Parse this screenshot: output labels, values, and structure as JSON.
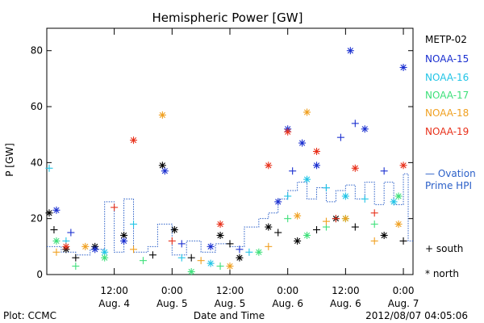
{
  "chart_data": {
    "type": "scatter",
    "title": "Hemispheric Power [GW]",
    "xlabel": "Date and Time",
    "ylabel": "P [GW]",
    "xlim": [
      "2012-08-03T22:00",
      "2012-08-07T02:00"
    ],
    "ylim": [
      0,
      88
    ],
    "x_ticks": [
      {
        "t": "2012-08-04T12:00",
        "time": "12:00",
        "date": "Aug. 4"
      },
      {
        "t": "2012-08-05T00:00",
        "time": "0:00",
        "date": "Aug. 5"
      },
      {
        "t": "2012-08-05T12:00",
        "time": "12:00",
        "date": "Aug. 5"
      },
      {
        "t": "2012-08-06T00:00",
        "time": "0:00",
        "date": "Aug. 6"
      },
      {
        "t": "2012-08-06T12:00",
        "time": "12:00",
        "date": "Aug. 6"
      },
      {
        "t": "2012-08-07T00:00",
        "time": "0:00",
        "date": "Aug. 7"
      }
    ],
    "y_ticks": [
      0,
      20,
      40,
      60,
      80
    ],
    "footer_left": "Plot: CCMC",
    "footer_right": "2012/08/07 04:05:06",
    "legend": {
      "position": "right",
      "series": [
        {
          "name": "METP-02",
          "color": "#000000"
        },
        {
          "name": "NOAA-15",
          "color": "#1a2fd0"
        },
        {
          "name": "NOAA-16",
          "color": "#21c4e6"
        },
        {
          "name": "NOAA-17",
          "color": "#3ee07a"
        },
        {
          "name": "NOAA-18",
          "color": "#f0a020"
        },
        {
          "name": "NOAA-19",
          "color": "#e8301a"
        }
      ],
      "ovation_line1": "— Ovation",
      "ovation_line2": "Prime HPI",
      "ovation_color": "#2a5fc8",
      "south_label": "+ south",
      "north_label": "* north"
    },
    "series": [
      {
        "name": "METP-02",
        "points": [
          {
            "x": "2012-08-03T22:30",
            "y": 22,
            "m": "north"
          },
          {
            "x": "2012-08-03T23:30",
            "y": 16,
            "m": "south"
          },
          {
            "x": "2012-08-04T02:00",
            "y": 9,
            "m": "north"
          },
          {
            "x": "2012-08-04T04:00",
            "y": 6,
            "m": "south"
          },
          {
            "x": "2012-08-04T08:00",
            "y": 10,
            "m": "north"
          },
          {
            "x": "2012-08-04T14:00",
            "y": 14,
            "m": "north"
          },
          {
            "x": "2012-08-04T20:00",
            "y": 7,
            "m": "south"
          },
          {
            "x": "2012-08-04T22:00",
            "y": 39,
            "m": "north"
          },
          {
            "x": "2012-08-05T00:30",
            "y": 16,
            "m": "north"
          },
          {
            "x": "2012-08-05T04:00",
            "y": 6,
            "m": "south"
          },
          {
            "x": "2012-08-05T10:00",
            "y": 14,
            "m": "north"
          },
          {
            "x": "2012-08-05T12:00",
            "y": 11,
            "m": "south"
          },
          {
            "x": "2012-08-05T14:00",
            "y": 6,
            "m": "north"
          },
          {
            "x": "2012-08-05T20:00",
            "y": 17,
            "m": "north"
          },
          {
            "x": "2012-08-05T22:00",
            "y": 15,
            "m": "south"
          },
          {
            "x": "2012-08-06T02:00",
            "y": 12,
            "m": "north"
          },
          {
            "x": "2012-08-06T06:00",
            "y": 16,
            "m": "south"
          },
          {
            "x": "2012-08-06T10:00",
            "y": 20,
            "m": "north"
          },
          {
            "x": "2012-08-06T14:00",
            "y": 17,
            "m": "south"
          },
          {
            "x": "2012-08-06T20:00",
            "y": 14,
            "m": "north"
          },
          {
            "x": "2012-08-07T00:00",
            "y": 12,
            "m": "south"
          }
        ]
      },
      {
        "name": "NOAA-15",
        "points": [
          {
            "x": "2012-08-04T00:00",
            "y": 23,
            "m": "north"
          },
          {
            "x": "2012-08-04T03:00",
            "y": 15,
            "m": "south"
          },
          {
            "x": "2012-08-04T08:00",
            "y": 9,
            "m": "north"
          },
          {
            "x": "2012-08-04T14:00",
            "y": 12,
            "m": "north"
          },
          {
            "x": "2012-08-04T22:30",
            "y": 37,
            "m": "north"
          },
          {
            "x": "2012-08-05T02:00",
            "y": 11,
            "m": "south"
          },
          {
            "x": "2012-08-05T08:00",
            "y": 10,
            "m": "north"
          },
          {
            "x": "2012-08-05T14:00",
            "y": 9,
            "m": "south"
          },
          {
            "x": "2012-08-05T22:00",
            "y": 26,
            "m": "north"
          },
          {
            "x": "2012-08-06T00:00",
            "y": 52,
            "m": "north"
          },
          {
            "x": "2012-08-06T01:00",
            "y": 37,
            "m": "south"
          },
          {
            "x": "2012-08-06T03:00",
            "y": 47,
            "m": "north"
          },
          {
            "x": "2012-08-06T06:00",
            "y": 39,
            "m": "north"
          },
          {
            "x": "2012-08-06T08:00",
            "y": 31,
            "m": "south"
          },
          {
            "x": "2012-08-06T11:00",
            "y": 49,
            "m": "south"
          },
          {
            "x": "2012-08-06T13:00",
            "y": 80,
            "m": "north"
          },
          {
            "x": "2012-08-06T14:00",
            "y": 54,
            "m": "south"
          },
          {
            "x": "2012-08-06T16:00",
            "y": 52,
            "m": "north"
          },
          {
            "x": "2012-08-06T20:00",
            "y": 37,
            "m": "south"
          },
          {
            "x": "2012-08-07T00:00",
            "y": 74,
            "m": "north"
          }
        ]
      },
      {
        "name": "NOAA-16",
        "points": [
          {
            "x": "2012-08-03T22:30",
            "y": 38,
            "m": "south"
          },
          {
            "x": "2012-08-04T02:00",
            "y": 12,
            "m": "south"
          },
          {
            "x": "2012-08-04T10:00",
            "y": 8,
            "m": "north"
          },
          {
            "x": "2012-08-04T16:00",
            "y": 18,
            "m": "south"
          },
          {
            "x": "2012-08-05T02:00",
            "y": 6,
            "m": "south"
          },
          {
            "x": "2012-08-05T08:00",
            "y": 4,
            "m": "north"
          },
          {
            "x": "2012-08-05T16:00",
            "y": 8,
            "m": "south"
          },
          {
            "x": "2012-08-06T00:00",
            "y": 28,
            "m": "south"
          },
          {
            "x": "2012-08-06T04:00",
            "y": 34,
            "m": "north"
          },
          {
            "x": "2012-08-06T08:00",
            "y": 31,
            "m": "south"
          },
          {
            "x": "2012-08-06T12:00",
            "y": 28,
            "m": "north"
          },
          {
            "x": "2012-08-06T16:00",
            "y": 27,
            "m": "south"
          },
          {
            "x": "2012-08-06T22:00",
            "y": 26,
            "m": "north"
          }
        ]
      },
      {
        "name": "NOAA-17",
        "points": [
          {
            "x": "2012-08-04T00:00",
            "y": 12,
            "m": "north"
          },
          {
            "x": "2012-08-04T04:00",
            "y": 3,
            "m": "south"
          },
          {
            "x": "2012-08-04T10:00",
            "y": 6,
            "m": "north"
          },
          {
            "x": "2012-08-04T18:00",
            "y": 5,
            "m": "south"
          },
          {
            "x": "2012-08-05T04:00",
            "y": 1,
            "m": "north"
          },
          {
            "x": "2012-08-05T10:00",
            "y": 3,
            "m": "south"
          },
          {
            "x": "2012-08-05T18:00",
            "y": 8,
            "m": "north"
          },
          {
            "x": "2012-08-06T00:00",
            "y": 20,
            "m": "south"
          },
          {
            "x": "2012-08-06T04:00",
            "y": 14,
            "m": "north"
          },
          {
            "x": "2012-08-06T08:00",
            "y": 17,
            "m": "south"
          },
          {
            "x": "2012-08-06T12:00",
            "y": 20,
            "m": "north"
          },
          {
            "x": "2012-08-06T18:00",
            "y": 18,
            "m": "south"
          },
          {
            "x": "2012-08-06T23:00",
            "y": 28,
            "m": "north"
          }
        ]
      },
      {
        "name": "NOAA-18",
        "points": [
          {
            "x": "2012-08-04T00:00",
            "y": 8,
            "m": "south"
          },
          {
            "x": "2012-08-04T06:00",
            "y": 10,
            "m": "north"
          },
          {
            "x": "2012-08-04T16:00",
            "y": 9,
            "m": "south"
          },
          {
            "x": "2012-08-04T22:00",
            "y": 57,
            "m": "north"
          },
          {
            "x": "2012-08-05T06:00",
            "y": 5,
            "m": "south"
          },
          {
            "x": "2012-08-05T12:00",
            "y": 3,
            "m": "north"
          },
          {
            "x": "2012-08-05T20:00",
            "y": 10,
            "m": "south"
          },
          {
            "x": "2012-08-06T02:00",
            "y": 21,
            "m": "north"
          },
          {
            "x": "2012-08-06T04:00",
            "y": 58,
            "m": "north"
          },
          {
            "x": "2012-08-06T08:00",
            "y": 19,
            "m": "south"
          },
          {
            "x": "2012-08-06T12:00",
            "y": 20,
            "m": "north"
          },
          {
            "x": "2012-08-06T18:00",
            "y": 12,
            "m": "south"
          },
          {
            "x": "2012-08-06T23:00",
            "y": 18,
            "m": "north"
          }
        ]
      },
      {
        "name": "NOAA-19",
        "points": [
          {
            "x": "2012-08-04T02:00",
            "y": 10,
            "m": "north"
          },
          {
            "x": "2012-08-04T12:00",
            "y": 24,
            "m": "south"
          },
          {
            "x": "2012-08-04T16:00",
            "y": 48,
            "m": "north"
          },
          {
            "x": "2012-08-05T00:00",
            "y": 12,
            "m": "south"
          },
          {
            "x": "2012-08-05T10:00",
            "y": 18,
            "m": "north"
          },
          {
            "x": "2012-08-05T20:00",
            "y": 39,
            "m": "north"
          },
          {
            "x": "2012-08-06T00:00",
            "y": 51,
            "m": "north"
          },
          {
            "x": "2012-08-06T06:00",
            "y": 44,
            "m": "north"
          },
          {
            "x": "2012-08-06T10:00",
            "y": 20,
            "m": "south"
          },
          {
            "x": "2012-08-06T14:00",
            "y": 38,
            "m": "north"
          },
          {
            "x": "2012-08-06T18:00",
            "y": 22,
            "m": "south"
          },
          {
            "x": "2012-08-07T00:00",
            "y": 39,
            "m": "north"
          }
        ]
      }
    ],
    "ovation_hpi": [
      {
        "x": "2012-08-03T22:00",
        "y": 10
      },
      {
        "x": "2012-08-04T01:00",
        "y": 8
      },
      {
        "x": "2012-08-04T04:00",
        "y": 7
      },
      {
        "x": "2012-08-04T07:00",
        "y": 9
      },
      {
        "x": "2012-08-04T10:00",
        "y": 26
      },
      {
        "x": "2012-08-04T12:00",
        "y": 8
      },
      {
        "x": "2012-08-04T14:00",
        "y": 27
      },
      {
        "x": "2012-08-04T16:00",
        "y": 8
      },
      {
        "x": "2012-08-04T19:00",
        "y": 10
      },
      {
        "x": "2012-08-04T21:00",
        "y": 18
      },
      {
        "x": "2012-08-05T00:00",
        "y": 7
      },
      {
        "x": "2012-08-05T03:00",
        "y": 12
      },
      {
        "x": "2012-08-05T06:00",
        "y": 8
      },
      {
        "x": "2012-08-05T09:00",
        "y": 11
      },
      {
        "x": "2012-08-05T12:00",
        "y": 10
      },
      {
        "x": "2012-08-05T15:00",
        "y": 17
      },
      {
        "x": "2012-08-05T18:00",
        "y": 20
      },
      {
        "x": "2012-08-05T20:00",
        "y": 22
      },
      {
        "x": "2012-08-05T22:00",
        "y": 27
      },
      {
        "x": "2012-08-06T00:00",
        "y": 30
      },
      {
        "x": "2012-08-06T02:00",
        "y": 33
      },
      {
        "x": "2012-08-06T04:00",
        "y": 27
      },
      {
        "x": "2012-08-06T06:00",
        "y": 31
      },
      {
        "x": "2012-08-06T08:00",
        "y": 26
      },
      {
        "x": "2012-08-06T10:00",
        "y": 30
      },
      {
        "x": "2012-08-06T12:00",
        "y": 32
      },
      {
        "x": "2012-08-06T14:00",
        "y": 27
      },
      {
        "x": "2012-08-06T16:00",
        "y": 33
      },
      {
        "x": "2012-08-06T18:00",
        "y": 25
      },
      {
        "x": "2012-08-06T20:00",
        "y": 33
      },
      {
        "x": "2012-08-06T22:00",
        "y": 25
      },
      {
        "x": "2012-08-07T00:00",
        "y": 36
      },
      {
        "x": "2012-08-07T01:00",
        "y": 12
      },
      {
        "x": "2012-08-07T02:00",
        "y": 12
      }
    ],
    "grid": false
  }
}
